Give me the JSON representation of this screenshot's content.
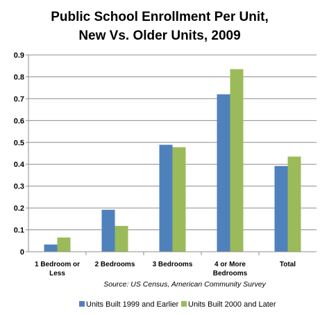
{
  "chart_data": {
    "type": "bar",
    "title_lines": [
      "Public School Enrollment Per Unit,",
      "New Vs. Older Units, 2009"
    ],
    "categories": [
      [
        "1 Bedroom or",
        "Less"
      ],
      [
        "2  Bedrooms"
      ],
      [
        "3  Bedrooms"
      ],
      [
        "4 or More",
        "Bedrooms"
      ],
      [
        "Total"
      ]
    ],
    "series": [
      {
        "name": "Units Built 1999 and Earlier",
        "color": "#4F81BD",
        "values": [
          0.033,
          0.192,
          0.489,
          0.72,
          0.392
        ]
      },
      {
        "name": "Units Built 2000 and Later",
        "color": "#9BBB59",
        "values": [
          0.065,
          0.118,
          0.478,
          0.835,
          0.435
        ]
      }
    ],
    "ylim": [
      0,
      0.9
    ],
    "yticks": [
      "0",
      "0.1",
      "0.2",
      "0.3",
      "0.4",
      "0.5",
      "0.6",
      "0.7",
      "0.8",
      "0.9"
    ],
    "grid": true,
    "legend_position": "bottom",
    "source": "Source: US Census, American Community Survey",
    "xlabel": "",
    "ylabel": ""
  }
}
